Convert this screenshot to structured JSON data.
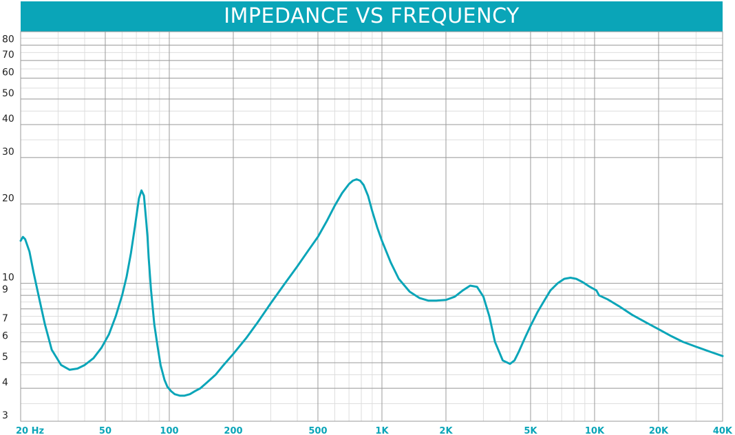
{
  "title": "IMPEDANCE VS FREQUENCY",
  "colors": {
    "accent": "#0aa5b8",
    "major_grid": "#9a9a9a",
    "minor_grid": "#dddddd"
  },
  "chart_data": {
    "type": "line",
    "title": "IMPEDANCE VS FREQUENCY",
    "xscale": "log",
    "yscale": "log",
    "xlim": [
      20,
      40000
    ],
    "ylim": [
      3,
      90
    ],
    "grid": true,
    "xticks": [
      {
        "value": 20,
        "label": "20 Hz"
      },
      {
        "value": 50,
        "label": "50"
      },
      {
        "value": 100,
        "label": "100"
      },
      {
        "value": 200,
        "label": "200"
      },
      {
        "value": 500,
        "label": "500"
      },
      {
        "value": 1000,
        "label": "1K"
      },
      {
        "value": 2000,
        "label": "2K"
      },
      {
        "value": 5000,
        "label": "5K"
      },
      {
        "value": 10000,
        "label": "10K"
      },
      {
        "value": 20000,
        "label": "20K"
      },
      {
        "value": 40000,
        "label": "40K"
      }
    ],
    "yticks": [
      {
        "value": 3,
        "label": "3"
      },
      {
        "value": 4,
        "label": "4"
      },
      {
        "value": 5,
        "label": "5"
      },
      {
        "value": 6,
        "label": "6"
      },
      {
        "value": 7,
        "label": "7"
      },
      {
        "value": 9,
        "label": "9"
      },
      {
        "value": 10,
        "label": "10"
      },
      {
        "value": 20,
        "label": "20"
      },
      {
        "value": 30,
        "label": "30"
      },
      {
        "value": 40,
        "label": "40"
      },
      {
        "value": 50,
        "label": "50"
      },
      {
        "value": 60,
        "label": "60"
      },
      {
        "value": 70,
        "label": "70"
      },
      {
        "value": 80,
        "label": "80"
      }
    ],
    "series": [
      {
        "x": [
          20,
          20.5,
          21,
          22,
          23,
          24.5,
          26,
          28,
          31,
          34,
          37,
          40,
          44,
          48,
          52,
          56,
          60,
          63,
          66,
          69,
          72,
          74,
          76,
          78,
          79,
          80,
          82,
          85,
          88,
          91,
          95,
          98,
          102,
          106,
          112,
          118,
          125,
          132,
          140,
          150,
          165,
          180,
          200,
          230,
          260,
          300,
          350,
          400,
          450,
          500,
          550,
          600,
          650,
          700,
          730,
          760,
          790,
          820,
          860,
          900,
          950,
          1000,
          1100,
          1200,
          1350,
          1500,
          1650,
          1800,
          2000,
          2200,
          2400,
          2600,
          2800,
          3000,
          3200,
          3400,
          3700,
          4000,
          4200,
          4400,
          4700,
          5000,
          5400,
          5800,
          6200,
          6700,
          7200,
          7700,
          8200,
          8800,
          9500,
          10200,
          10500,
          11500,
          13000,
          15000,
          17500,
          20000,
          23000,
          26000,
          30000,
          35000,
          40000
        ],
        "y": [
          14.5,
          15.0,
          14.7,
          13.2,
          11.0,
          8.7,
          7.0,
          5.6,
          4.9,
          4.7,
          4.75,
          4.9,
          5.2,
          5.7,
          6.4,
          7.5,
          9.0,
          10.6,
          13.0,
          16.5,
          21.0,
          22.5,
          21.5,
          17.0,
          15.0,
          12.5,
          9.5,
          7.0,
          5.8,
          4.9,
          4.3,
          4.05,
          3.9,
          3.8,
          3.75,
          3.75,
          3.8,
          3.9,
          4.0,
          4.2,
          4.5,
          4.9,
          5.4,
          6.2,
          7.1,
          8.4,
          10.0,
          11.6,
          13.3,
          15.0,
          17.2,
          19.7,
          22.0,
          23.8,
          24.5,
          24.8,
          24.5,
          23.6,
          21.5,
          18.8,
          16.3,
          14.5,
          12.0,
          10.4,
          9.3,
          8.8,
          8.6,
          8.6,
          8.65,
          8.9,
          9.4,
          9.8,
          9.7,
          8.9,
          7.5,
          6.0,
          5.1,
          4.95,
          5.1,
          5.5,
          6.2,
          6.9,
          7.8,
          8.6,
          9.4,
          10.0,
          10.4,
          10.5,
          10.4,
          10.1,
          9.7,
          9.4,
          9.0,
          8.7,
          8.2,
          7.6,
          7.1,
          6.7,
          6.3,
          6.0,
          5.75,
          5.5,
          5.3
        ]
      }
    ]
  }
}
